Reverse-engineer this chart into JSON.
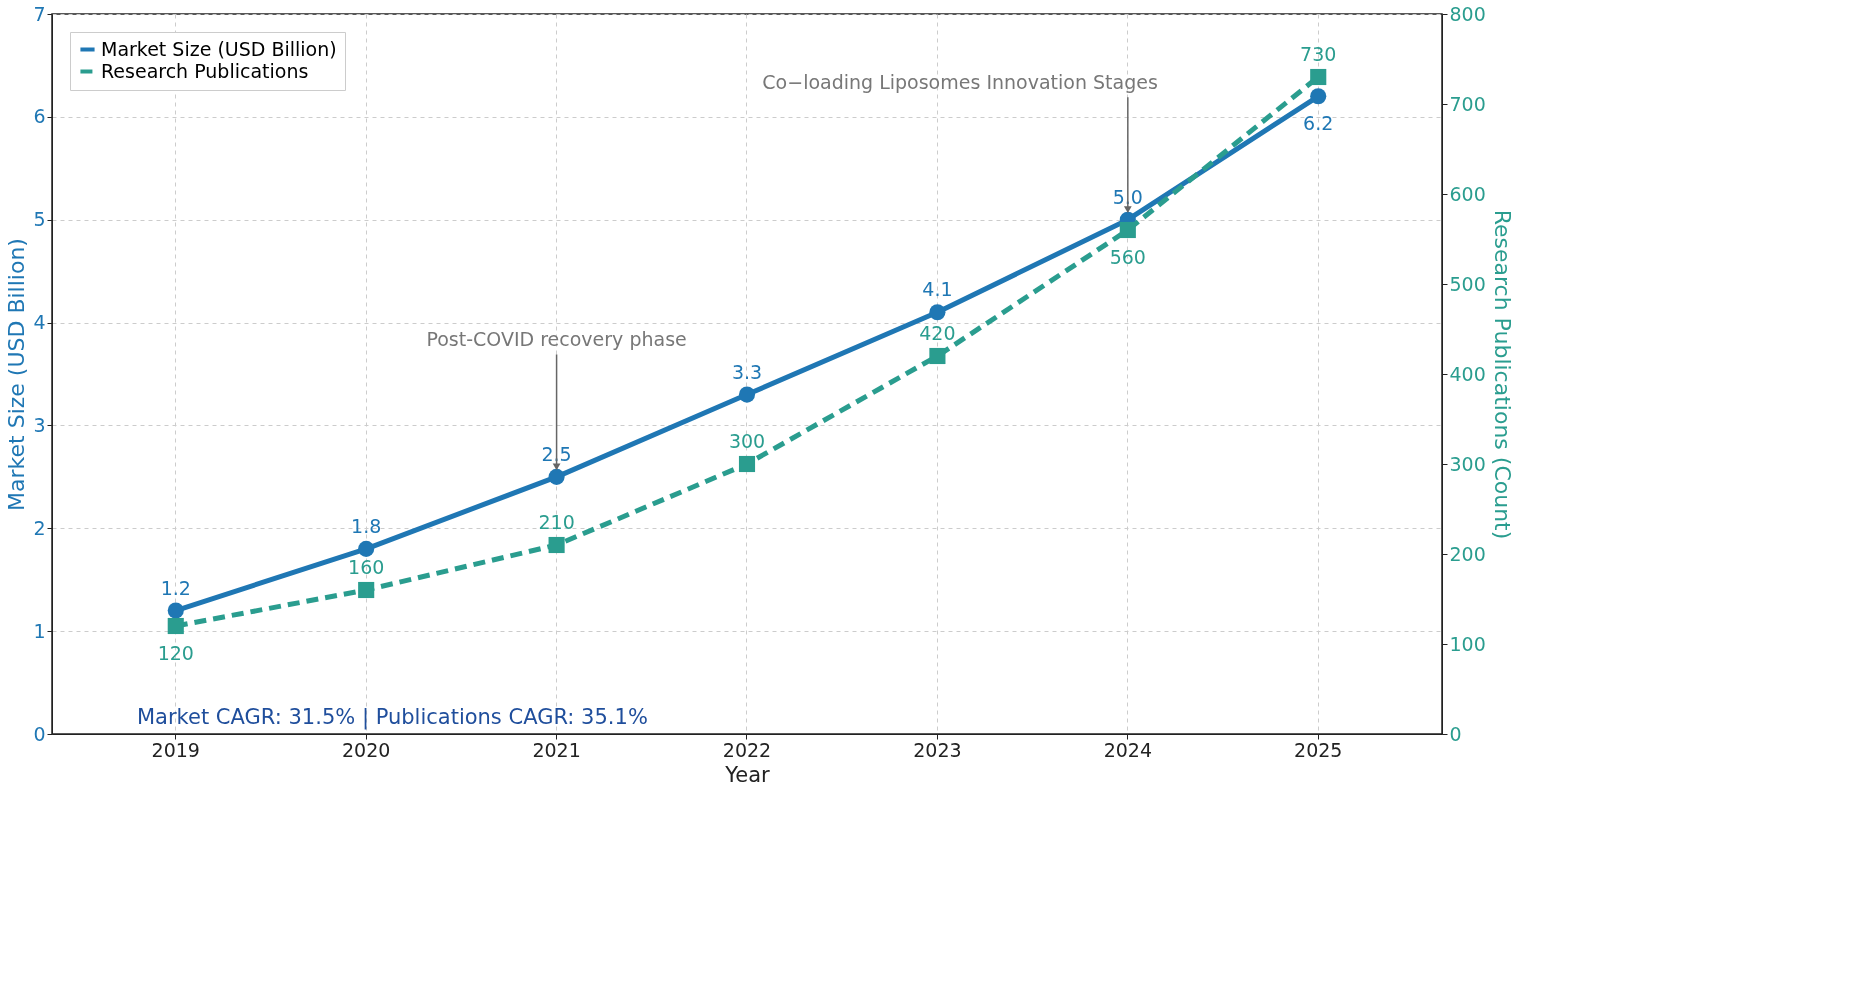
{
  "chart_data": {
    "type": "line",
    "xlabel": "Year",
    "ylabel": "Market Size (USD Billion)",
    "y2label": "Research Publications (Count)",
    "categories": [
      "2019",
      "2020",
      "2021",
      "2022",
      "2023",
      "2024",
      "2025"
    ],
    "series": [
      {
        "name": "Market Size (USD Billion)",
        "color": "#1f77b4",
        "values": [
          1.2,
          1.8,
          2.5,
          3.3,
          4.1,
          5.0,
          6.2
        ],
        "value_labels": [
          "1.2",
          "1.8",
          "2.5",
          "3.3",
          "4.1",
          "5.0",
          "6.2"
        ],
        "marker": "circle",
        "line_style": "solid"
      },
      {
        "name": "Research Publications",
        "color": "#2a9d8f",
        "values": [
          120,
          160,
          210,
          300,
          420,
          560,
          730
        ],
        "axis": "y2",
        "marker": "square",
        "line_style": "dashed"
      }
    ],
    "ylim": [
      0,
      7
    ],
    "yticks": [
      0,
      1,
      2,
      3,
      4,
      5,
      6,
      7
    ],
    "y2lim": [
      0,
      800
    ],
    "y2ticks": [
      0,
      100,
      200,
      300,
      400,
      500,
      600,
      700,
      800
    ],
    "data_labels": true,
    "grid": true,
    "legend": "top left",
    "annotations": [
      {
        "text": "Post-COVID recovery phase",
        "x": "2021",
        "y": 2.5
      },
      {
        "text": "Co−loading Liposomes Innovation Stages",
        "x": "2024",
        "y": 5.0
      },
      "Market CAGR: 31.5%   |   Publications CAGR: 35.1%"
    ]
  }
}
